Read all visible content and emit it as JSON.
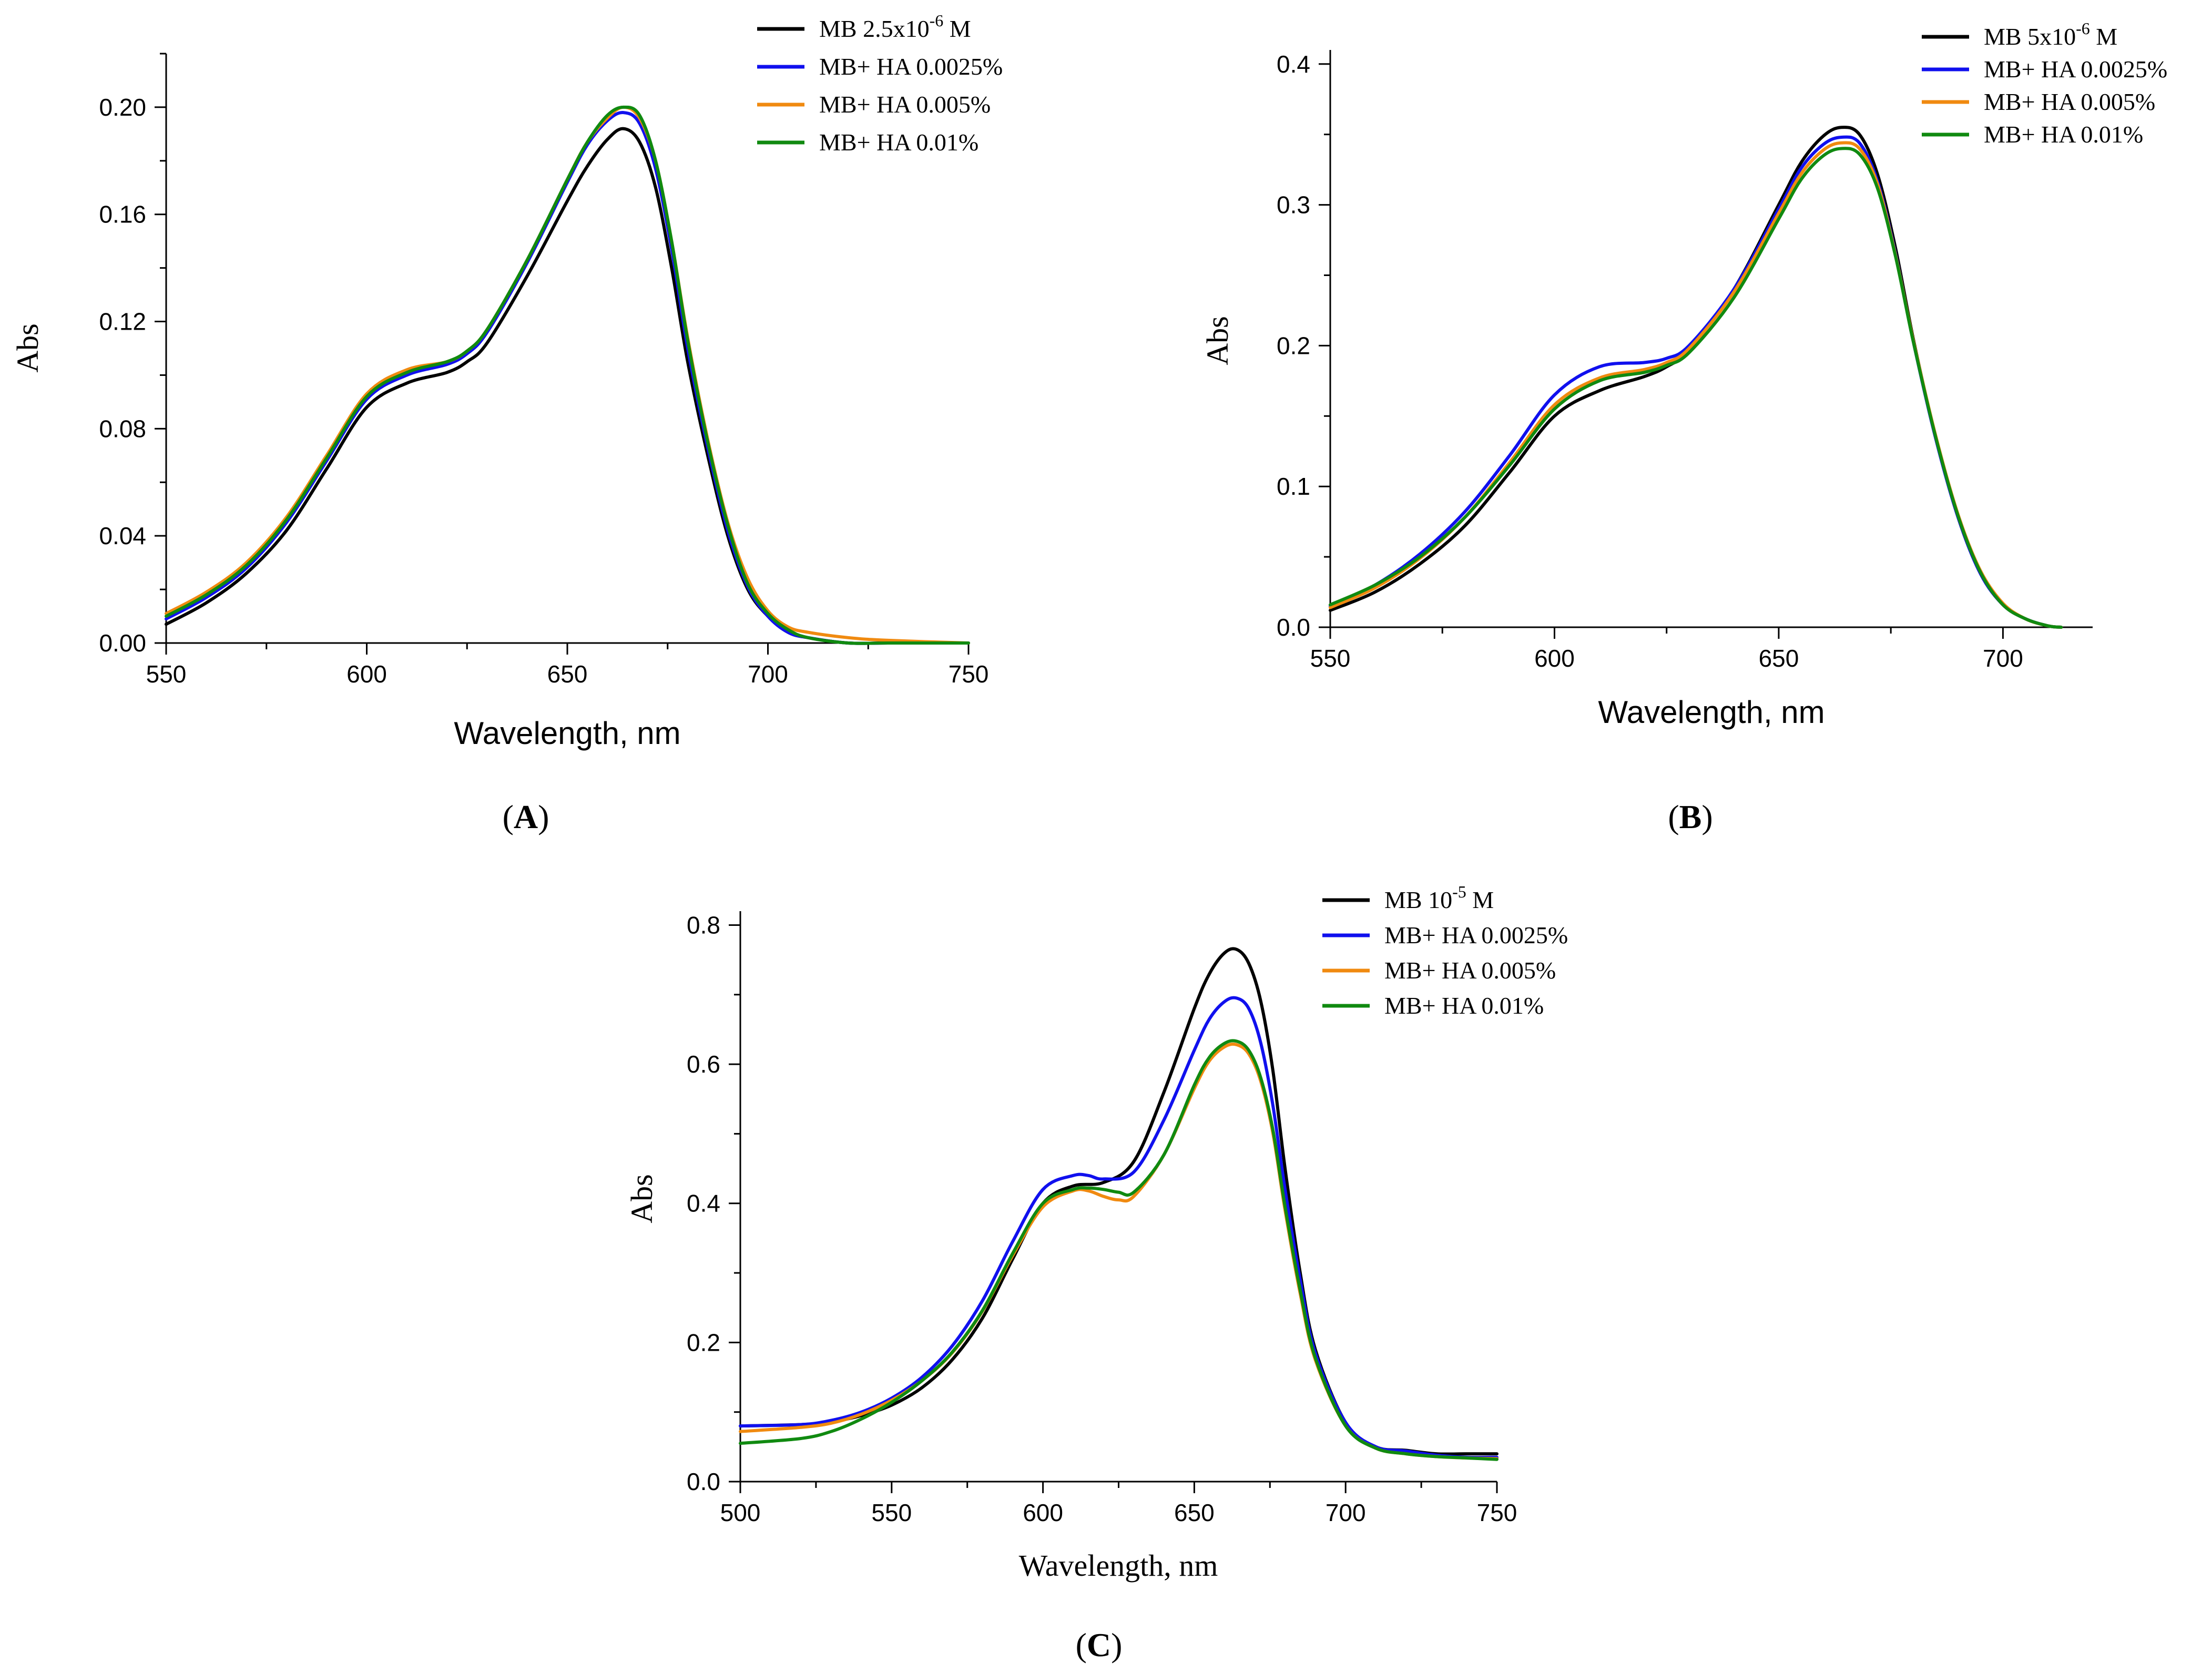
{
  "chart_data": [
    {
      "type": "line",
      "panel_label": "A",
      "xlabel": "Wavelength, nm",
      "ylabel": "Abs",
      "xlim": [
        550,
        750
      ],
      "ylim": [
        0,
        0.22
      ],
      "xticks": [
        550,
        600,
        650,
        700,
        750
      ],
      "xtick_labels": [
        "550",
        "600",
        "650",
        "700",
        "750"
      ],
      "yticks": [
        0,
        0.04,
        0.08,
        0.12,
        0.16,
        0.2
      ],
      "ytick_labels": [
        "0.00",
        "0.04",
        "0.08",
        "0.12",
        "0.16",
        "0.20"
      ],
      "legend_position": "top-right",
      "series": [
        {
          "name": "MB 2.5x10",
          "sup": "-6",
          "suffix": " M",
          "color": "#000000",
          "x": [
            550,
            560,
            570,
            580,
            590,
            600,
            610,
            620,
            625,
            630,
            640,
            650,
            655,
            660,
            664,
            668,
            672,
            676,
            680,
            685,
            690,
            695,
            700,
            705,
            710,
            720,
            730,
            750
          ],
          "y": [
            0.007,
            0.015,
            0.026,
            0.042,
            0.065,
            0.088,
            0.097,
            0.101,
            0.105,
            0.112,
            0.137,
            0.165,
            0.178,
            0.188,
            0.192,
            0.187,
            0.17,
            0.14,
            0.105,
            0.07,
            0.04,
            0.02,
            0.01,
            0.004,
            0.002,
            0.0,
            0.0,
            0.0
          ]
        },
        {
          "name": "MB+ HA 0.0025%",
          "color": "#1010ee",
          "x": [
            550,
            560,
            570,
            580,
            590,
            600,
            610,
            620,
            625,
            630,
            640,
            650,
            655,
            660,
            664,
            668,
            672,
            676,
            680,
            685,
            690,
            695,
            700,
            705,
            710,
            720,
            730,
            750
          ],
          "y": [
            0.009,
            0.017,
            0.028,
            0.045,
            0.068,
            0.091,
            0.1,
            0.104,
            0.108,
            0.116,
            0.142,
            0.172,
            0.186,
            0.195,
            0.198,
            0.194,
            0.177,
            0.147,
            0.11,
            0.073,
            0.042,
            0.021,
            0.01,
            0.004,
            0.002,
            0.0,
            0.0,
            0.0
          ]
        },
        {
          "name": "MB+ HA 0.005%",
          "color": "#f08a10",
          "x": [
            550,
            560,
            570,
            580,
            590,
            600,
            610,
            620,
            625,
            630,
            640,
            650,
            655,
            660,
            664,
            668,
            672,
            676,
            680,
            685,
            690,
            695,
            700,
            705,
            710,
            720,
            730,
            750
          ],
          "y": [
            0.011,
            0.019,
            0.03,
            0.047,
            0.07,
            0.093,
            0.102,
            0.105,
            0.109,
            0.117,
            0.143,
            0.173,
            0.187,
            0.196,
            0.2,
            0.196,
            0.18,
            0.15,
            0.114,
            0.076,
            0.045,
            0.024,
            0.012,
            0.006,
            0.004,
            0.002,
            0.001,
            0.0
          ]
        },
        {
          "name": "MB+ HA 0.01%",
          "color": "#108a10",
          "x": [
            550,
            560,
            570,
            580,
            590,
            600,
            610,
            620,
            625,
            630,
            640,
            650,
            655,
            660,
            664,
            668,
            672,
            676,
            680,
            685,
            690,
            695,
            700,
            705,
            710,
            720,
            730,
            750
          ],
          "y": [
            0.01,
            0.018,
            0.029,
            0.046,
            0.069,
            0.092,
            0.101,
            0.105,
            0.109,
            0.117,
            0.143,
            0.173,
            0.187,
            0.197,
            0.2,
            0.197,
            0.18,
            0.15,
            0.113,
            0.075,
            0.044,
            0.022,
            0.011,
            0.005,
            0.002,
            0.0,
            0.0,
            0.0
          ]
        }
      ]
    },
    {
      "type": "line",
      "panel_label": "B",
      "xlabel": "Wavelength, nm",
      "ylabel": "Abs",
      "xlim": [
        550,
        720
      ],
      "ylim": [
        0,
        0.41
      ],
      "xticks": [
        550,
        600,
        650,
        700
      ],
      "xtick_labels": [
        "550",
        "600",
        "650",
        "700"
      ],
      "yticks": [
        0,
        0.1,
        0.2,
        0.3,
        0.4
      ],
      "ytick_labels": [
        "0.0",
        "0.1",
        "0.2",
        "0.3",
        "0.4"
      ],
      "legend_position": "top-right",
      "series": [
        {
          "name": "MB 5x10",
          "sup": "-6",
          "suffix": " M",
          "color": "#000000",
          "x": [
            550,
            560,
            570,
            580,
            590,
            600,
            610,
            620,
            625,
            630,
            640,
            650,
            655,
            660,
            664,
            668,
            672,
            676,
            680,
            685,
            690,
            695,
            700,
            705,
            710,
            713
          ],
          "y": [
            0.012,
            0.025,
            0.045,
            0.072,
            0.11,
            0.15,
            0.168,
            0.178,
            0.185,
            0.197,
            0.24,
            0.3,
            0.33,
            0.349,
            0.355,
            0.35,
            0.322,
            0.27,
            0.205,
            0.135,
            0.078,
            0.038,
            0.016,
            0.006,
            0.001,
            0.0
          ]
        },
        {
          "name": "MB+ HA 0.0025%",
          "color": "#1010ee",
          "x": [
            550,
            560,
            570,
            580,
            590,
            600,
            610,
            620,
            625,
            630,
            640,
            650,
            655,
            660,
            664,
            668,
            672,
            676,
            680,
            685,
            690,
            695,
            700,
            705,
            710,
            713
          ],
          "y": [
            0.015,
            0.03,
            0.052,
            0.082,
            0.122,
            0.165,
            0.185,
            0.188,
            0.191,
            0.2,
            0.24,
            0.297,
            0.326,
            0.343,
            0.348,
            0.344,
            0.317,
            0.266,
            0.203,
            0.134,
            0.078,
            0.038,
            0.016,
            0.006,
            0.001,
            0.0
          ]
        },
        {
          "name": "MB+ HA 0.005%",
          "color": "#f08a10",
          "x": [
            550,
            560,
            570,
            580,
            590,
            600,
            610,
            620,
            625,
            630,
            640,
            650,
            655,
            660,
            664,
            668,
            672,
            676,
            680,
            685,
            690,
            695,
            700,
            705,
            710,
            713
          ],
          "y": [
            0.014,
            0.028,
            0.049,
            0.078,
            0.117,
            0.158,
            0.177,
            0.183,
            0.188,
            0.198,
            0.238,
            0.294,
            0.322,
            0.339,
            0.344,
            0.34,
            0.315,
            0.265,
            0.204,
            0.136,
            0.08,
            0.04,
            0.017,
            0.006,
            0.001,
            0.0
          ]
        },
        {
          "name": "MB+ HA 0.01%",
          "color": "#108a10",
          "x": [
            550,
            560,
            570,
            580,
            590,
            600,
            610,
            620,
            625,
            630,
            640,
            650,
            655,
            660,
            664,
            668,
            672,
            676,
            680,
            685,
            690,
            695,
            700,
            705,
            710,
            713
          ],
          "y": [
            0.016,
            0.03,
            0.05,
            0.078,
            0.115,
            0.155,
            0.175,
            0.181,
            0.186,
            0.195,
            0.234,
            0.29,
            0.318,
            0.335,
            0.34,
            0.336,
            0.312,
            0.264,
            0.203,
            0.135,
            0.079,
            0.039,
            0.016,
            0.006,
            0.001,
            0.0
          ]
        }
      ]
    },
    {
      "type": "line",
      "panel_label": "C",
      "xlabel": "Wavelength, nm",
      "ylabel": "Abs",
      "xlim": [
        500,
        750
      ],
      "ylim": [
        0,
        0.82
      ],
      "xticks": [
        500,
        550,
        600,
        650,
        700,
        750
      ],
      "xtick_labels": [
        "500",
        "550",
        "600",
        "650",
        "700",
        "750"
      ],
      "yticks": [
        0,
        0.2,
        0.4,
        0.6,
        0.8
      ],
      "ytick_labels": [
        "0.0",
        "0.2",
        "0.4",
        "0.6",
        "0.8"
      ],
      "legend_position": "top-right",
      "series": [
        {
          "name": "MB 10",
          "sup": "-5",
          "suffix": " M",
          "color": "#000000",
          "x": [
            500,
            520,
            530,
            540,
            550,
            560,
            570,
            580,
            590,
            600,
            610,
            620,
            630,
            640,
            650,
            655,
            660,
            664,
            668,
            672,
            676,
            680,
            685,
            690,
            700,
            710,
            720,
            730,
            740,
            750
          ],
          "y": [
            0.08,
            0.082,
            0.086,
            0.095,
            0.11,
            0.135,
            0.175,
            0.235,
            0.32,
            0.4,
            0.425,
            0.43,
            0.46,
            0.56,
            0.68,
            0.73,
            0.76,
            0.765,
            0.745,
            0.69,
            0.59,
            0.45,
            0.3,
            0.19,
            0.085,
            0.05,
            0.045,
            0.04,
            0.04,
            0.04
          ]
        },
        {
          "name": "MB+ HA 0.0025%",
          "color": "#1010ee",
          "x": [
            500,
            520,
            530,
            540,
            550,
            560,
            570,
            580,
            590,
            600,
            610,
            615,
            620,
            630,
            640,
            650,
            655,
            660,
            664,
            668,
            672,
            676,
            680,
            685,
            690,
            700,
            710,
            720,
            730,
            740,
            750
          ],
          "y": [
            0.08,
            0.082,
            0.088,
            0.1,
            0.12,
            0.15,
            0.195,
            0.26,
            0.345,
            0.42,
            0.44,
            0.44,
            0.435,
            0.445,
            0.52,
            0.62,
            0.665,
            0.69,
            0.695,
            0.68,
            0.63,
            0.54,
            0.42,
            0.29,
            0.185,
            0.085,
            0.05,
            0.044,
            0.038,
            0.035,
            0.035
          ]
        },
        {
          "name": "MB+ HA 0.005%",
          "color": "#f08a10",
          "x": [
            500,
            520,
            530,
            540,
            550,
            560,
            570,
            580,
            590,
            600,
            610,
            615,
            620,
            625,
            630,
            640,
            650,
            655,
            660,
            664,
            668,
            672,
            676,
            680,
            685,
            690,
            700,
            710,
            720,
            730,
            740,
            750
          ],
          "y": [
            0.072,
            0.078,
            0.084,
            0.097,
            0.117,
            0.145,
            0.185,
            0.245,
            0.325,
            0.395,
            0.418,
            0.418,
            0.41,
            0.405,
            0.41,
            0.47,
            0.565,
            0.605,
            0.625,
            0.628,
            0.615,
            0.575,
            0.5,
            0.39,
            0.27,
            0.175,
            0.08,
            0.048,
            0.04,
            0.036,
            0.034,
            0.033
          ]
        },
        {
          "name": "MB+ HA 0.01%",
          "color": "#108a10",
          "x": [
            500,
            520,
            530,
            540,
            550,
            560,
            570,
            580,
            590,
            600,
            610,
            615,
            620,
            625,
            630,
            640,
            650,
            655,
            660,
            664,
            668,
            672,
            676,
            680,
            685,
            690,
            700,
            710,
            720,
            730,
            740,
            750
          ],
          "y": [
            0.055,
            0.062,
            0.072,
            0.09,
            0.114,
            0.145,
            0.186,
            0.246,
            0.328,
            0.4,
            0.42,
            0.422,
            0.42,
            0.416,
            0.416,
            0.47,
            0.57,
            0.61,
            0.63,
            0.633,
            0.62,
            0.58,
            0.505,
            0.395,
            0.275,
            0.178,
            0.08,
            0.048,
            0.04,
            0.036,
            0.034,
            0.032
          ]
        }
      ]
    }
  ]
}
